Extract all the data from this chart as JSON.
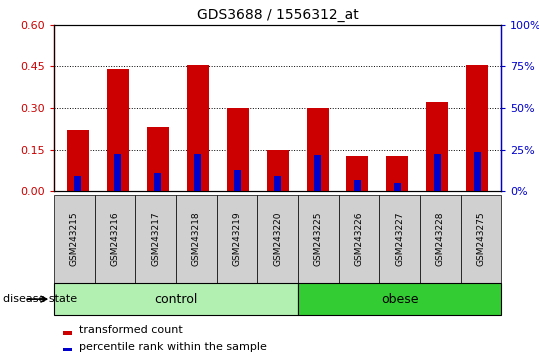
{
  "title": "GDS3688 / 1556312_at",
  "samples": [
    "GSM243215",
    "GSM243216",
    "GSM243217",
    "GSM243218",
    "GSM243219",
    "GSM243220",
    "GSM243225",
    "GSM243226",
    "GSM243227",
    "GSM243228",
    "GSM243275"
  ],
  "red_values": [
    0.22,
    0.44,
    0.23,
    0.455,
    0.3,
    0.148,
    0.3,
    0.125,
    0.125,
    0.32,
    0.455
  ],
  "blue_values": [
    0.055,
    0.135,
    0.065,
    0.135,
    0.075,
    0.055,
    0.13,
    0.04,
    0.03,
    0.135,
    0.14
  ],
  "groups": [
    {
      "label": "control",
      "start": 0,
      "end": 6,
      "color": "#b2f0b2"
    },
    {
      "label": "obese",
      "start": 6,
      "end": 11,
      "color": "#33cc33"
    }
  ],
  "ylim_left": [
    0,
    0.6
  ],
  "ylim_right": [
    0,
    100
  ],
  "yticks_left": [
    0,
    0.15,
    0.3,
    0.45,
    0.6
  ],
  "yticks_right": [
    0,
    25,
    50,
    75,
    100
  ],
  "left_axis_color": "#cc0000",
  "right_axis_color": "#0000cc",
  "bar_color_red": "#cc0000",
  "bar_color_blue": "#0000cc",
  "background_color": "#ffffff",
  "plot_bg_color": "#ffffff",
  "tick_bg_color": "#d0d0d0",
  "disease_state_label": "disease state",
  "legend_red": "transformed count",
  "legend_blue": "percentile rank within the sample",
  "bar_width": 0.55,
  "blue_bar_width": 0.18
}
